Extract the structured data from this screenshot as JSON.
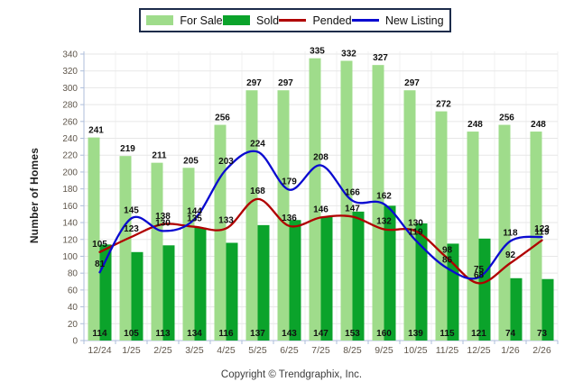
{
  "ylabel": "Number of Homes",
  "copyright": "Copyright © Trendgraphix, Inc.",
  "colors": {
    "for_sale": "#9fdc8b",
    "sold": "#0ba32b",
    "pended": "#b00000",
    "new_listing": "#0a0ad0",
    "grid_h": "#e7e7e7",
    "grid_v": "#f1f1f1",
    "axis": "#aebedb",
    "tick_text": "#5f564b",
    "value_label": "#111111",
    "legend_border": "#1c2b4a"
  },
  "legend": {
    "items": [
      {
        "label": "For Sale",
        "swatch": "bar",
        "color_key": "for_sale"
      },
      {
        "label": "Sold",
        "swatch": "bar",
        "color_key": "sold"
      },
      {
        "label": "Pended",
        "swatch": "line",
        "color_key": "pended"
      },
      {
        "label": "New Listing",
        "swatch": "line",
        "color_key": "new_listing"
      }
    ]
  },
  "chart_data": {
    "type": "combo-bar-line",
    "title": "",
    "xlabel": "",
    "ylabel": "Number of Homes",
    "ylim": [
      0,
      340
    ],
    "ytick_step": 20,
    "grid": true,
    "legend_position": "top",
    "categories": [
      "12/24",
      "1/25",
      "2/25",
      "3/25",
      "4/25",
      "5/25",
      "6/25",
      "7/25",
      "8/25",
      "9/25",
      "10/25",
      "11/25",
      "12/25",
      "1/26",
      "2/26"
    ],
    "series": [
      {
        "name": "For Sale",
        "type": "bar",
        "color_key": "for_sale",
        "values": [
          241,
          219,
          211,
          205,
          256,
          297,
          297,
          335,
          332,
          327,
          297,
          272,
          248,
          256,
          248
        ]
      },
      {
        "name": "Sold",
        "type": "bar",
        "color_key": "sold",
        "values": [
          114,
          105,
          113,
          134,
          116,
          137,
          143,
          147,
          153,
          160,
          139,
          115,
          121,
          74,
          73
        ]
      },
      {
        "name": "Pended",
        "type": "line",
        "color_key": "pended",
        "values": [
          105,
          123,
          138,
          135,
          133,
          168,
          136,
          146,
          147,
          132,
          130,
          98,
          68,
          92,
          119
        ]
      },
      {
        "name": "New Listing",
        "type": "line",
        "color_key": "new_listing",
        "values": [
          81,
          145,
          130,
          144,
          203,
          224,
          179,
          208,
          166,
          162,
          119,
          86,
          75,
          118,
          123
        ]
      }
    ]
  }
}
